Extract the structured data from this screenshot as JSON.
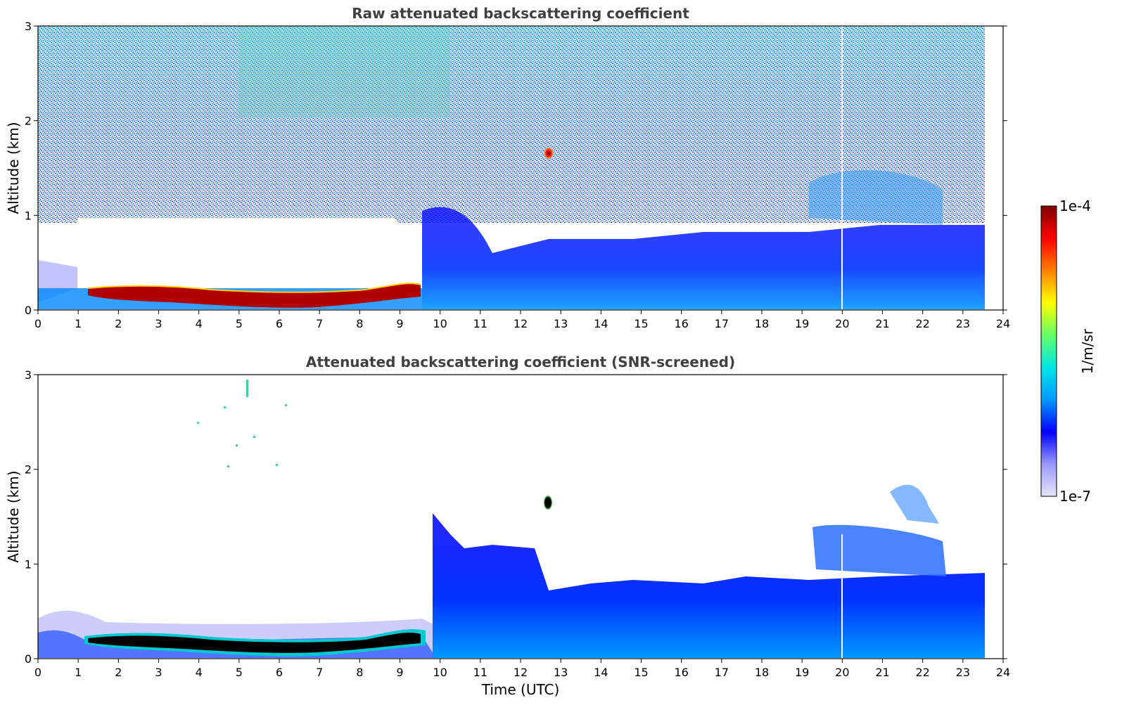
{
  "chart_data": [
    {
      "type": "heatmap",
      "title": "Raw attenuated backscattering coefficient",
      "xlabel": "",
      "ylabel": "Altitude (km)",
      "xlim": [
        0,
        24
      ],
      "ylim": [
        0,
        3
      ],
      "x_ticks": [
        "0",
        "1",
        "2",
        "3",
        "4",
        "5",
        "6",
        "7",
        "8",
        "9",
        "10",
        "11",
        "12",
        "13",
        "14",
        "15",
        "16",
        "17",
        "18",
        "19",
        "20",
        "21",
        "22",
        "23",
        "24"
      ],
      "y_ticks": [
        "0",
        "1",
        "2",
        "3"
      ],
      "data_end_hour": 23.55,
      "features": [
        {
          "name": "residual-layer",
          "x_start": 1.3,
          "x_end": 9.5,
          "y_center_start": 0.2,
          "y_center_mid": 0.12,
          "y_center_end": 0.22,
          "thickness": 0.08,
          "level": "1e-4"
        },
        {
          "name": "cloud-spot",
          "x": 12.7,
          "y": 1.65,
          "level": "1e-4"
        },
        {
          "name": "boundary-layer",
          "x_start": 10.5,
          "x_end": 23.55,
          "top_km": 0.6,
          "level": "1e-6"
        },
        {
          "name": "upper-aerosol",
          "x_start": 19.3,
          "x_end": 22.5,
          "y_bottom": 1.0,
          "y_top": 1.4,
          "level": "3e-6"
        }
      ]
    },
    {
      "type": "heatmap",
      "title": "Attenuated backscattering coefficient (SNR-screened)",
      "xlabel": "Time (UTC)",
      "ylabel": "Altitude (km)",
      "xlim": [
        0,
        24
      ],
      "ylim": [
        0,
        3
      ],
      "x_ticks": [
        "0",
        "1",
        "2",
        "3",
        "4",
        "5",
        "6",
        "7",
        "8",
        "9",
        "10",
        "11",
        "12",
        "13",
        "14",
        "15",
        "16",
        "17",
        "18",
        "19",
        "20",
        "21",
        "22",
        "23",
        "24"
      ],
      "y_ticks": [
        "0",
        "1",
        "2",
        "3"
      ],
      "data_end_hour": 23.55,
      "features": [
        {
          "name": "residual-layer",
          "x_start": 1.3,
          "x_end": 9.5,
          "level": "saturated"
        },
        {
          "name": "cloud-spot",
          "x": 12.7,
          "y": 1.65,
          "level": "saturated"
        },
        {
          "name": "boundary-layer",
          "x_start": 10.0,
          "x_end": 23.55,
          "top_km": 0.8,
          "level": "1e-6"
        },
        {
          "name": "upper-aerosol",
          "x_start": 19.3,
          "x_end": 22.5,
          "y_bottom": 0.9,
          "y_top": 1.4,
          "level": "3e-6"
        }
      ]
    }
  ],
  "colorbar": {
    "label": "1/m/sr",
    "max_label": "1e-4",
    "min_label": "1e-7",
    "colors": [
      "#e6e6fa",
      "#9999ff",
      "#0000ff",
      "#0099ff",
      "#00e5e5",
      "#66ff66",
      "#ffff00",
      "#ff8000",
      "#ff0000",
      "#800000"
    ]
  }
}
